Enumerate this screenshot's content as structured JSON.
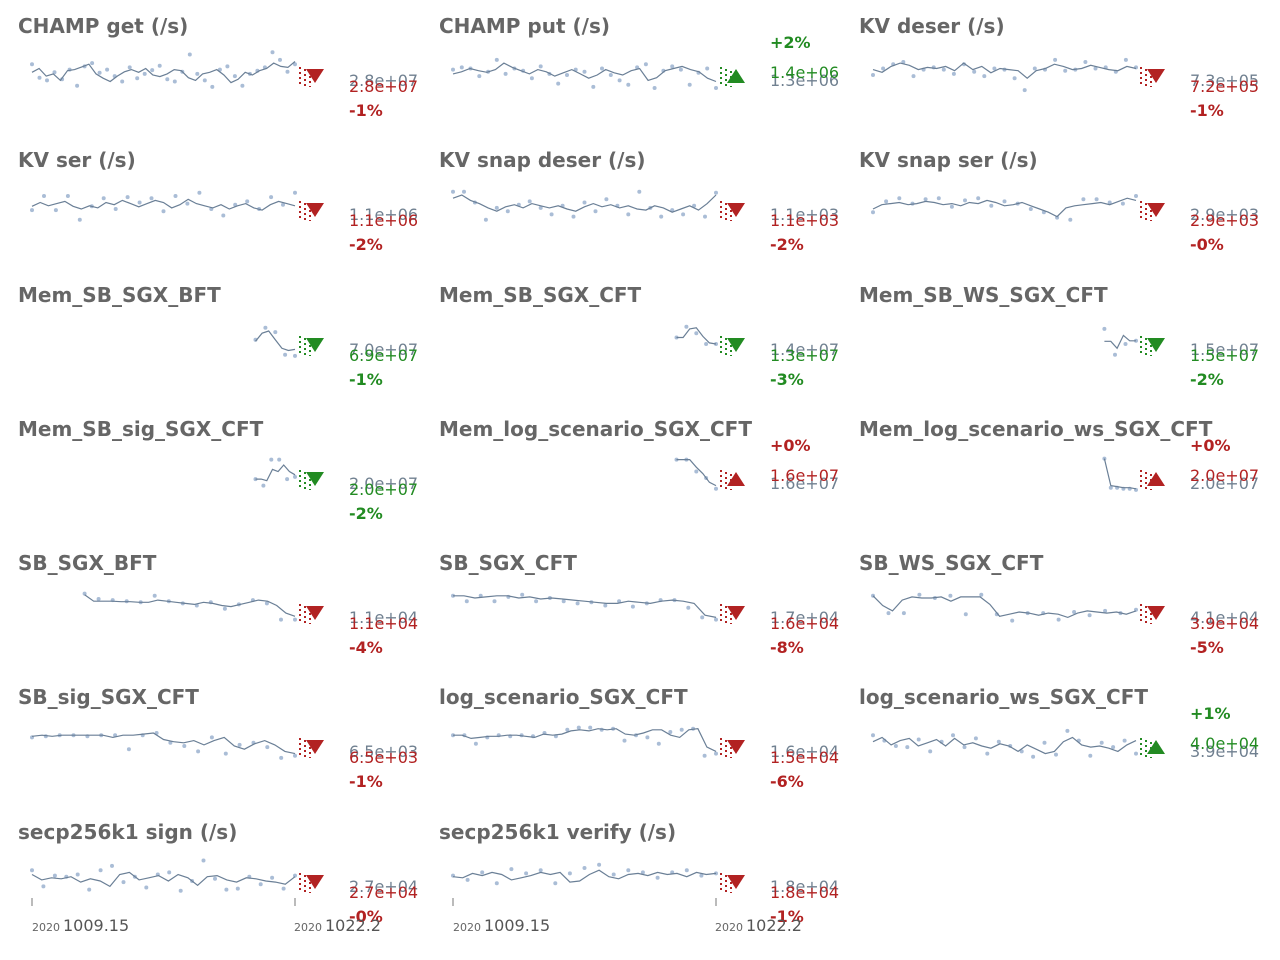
{
  "chart_data": [
    {
      "type": "line",
      "title": "CHAMP get (/s)",
      "prev": "2.8e+07",
      "last": "2.8e+07",
      "pct": "-1%",
      "dir": "down",
      "color": "#b22222",
      "prevColor": "#708090",
      "series": [
        {
          "values": [
            0.55,
            0.62,
            0.48,
            0.52,
            0.4,
            0.58,
            0.6,
            0.65,
            0.7,
            0.52,
            0.44,
            0.38,
            0.48,
            0.56,
            0.6,
            0.55,
            0.62,
            0.5,
            0.47,
            0.52,
            0.6,
            0.58,
            0.45,
            0.4,
            0.52,
            0.55,
            0.6,
            0.5,
            0.36,
            0.42,
            0.55,
            0.5,
            0.58,
            0.62,
            0.72,
            0.66,
            0.64,
            0.75
          ]
        }
      ],
      "points": [
        0.7,
        0.45,
        0.4,
        0.55,
        0.42,
        0.6,
        0.3,
        0.66,
        0.72,
        0.54,
        0.6,
        0.48,
        0.38,
        0.64,
        0.44,
        0.52,
        0.59,
        0.67,
        0.42,
        0.38,
        0.56,
        0.88,
        0.52,
        0.4,
        0.28,
        0.6,
        0.66,
        0.48,
        0.3,
        0.52,
        0.58,
        0.64,
        0.92,
        0.78,
        0.56,
        0.7
      ]
    },
    {
      "type": "line",
      "title": "CHAMP put (/s)",
      "prev": "1.3e+06",
      "last": "1.4e+06",
      "pct": "+2%",
      "dir": "up",
      "color": "#228b22",
      "prevColor": "#708090",
      "series": [
        {
          "values": [
            0.52,
            0.56,
            0.62,
            0.58,
            0.55,
            0.6,
            0.72,
            0.64,
            0.58,
            0.52,
            0.6,
            0.56,
            0.48,
            0.54,
            0.6,
            0.52,
            0.44,
            0.5,
            0.6,
            0.54,
            0.5,
            0.58,
            0.62,
            0.4,
            0.45,
            0.58,
            0.62,
            0.66,
            0.6,
            0.56,
            0.44,
            0.38
          ]
        }
      ],
      "points": [
        0.6,
        0.64,
        0.62,
        0.48,
        0.56,
        0.78,
        0.52,
        0.62,
        0.58,
        0.44,
        0.66,
        0.52,
        0.34,
        0.5,
        0.6,
        0.56,
        0.28,
        0.62,
        0.5,
        0.4,
        0.32,
        0.64,
        0.7,
        0.26,
        0.58,
        0.66,
        0.6,
        0.32,
        0.54,
        0.62,
        0.26
      ]
    },
    {
      "type": "line",
      "title": "KV deser (/s)",
      "prev": "7.3e+05",
      "last": "7.2e+05",
      "pct": "-1%",
      "dir": "down",
      "color": "#b22222",
      "prevColor": "#708090",
      "series": [
        {
          "values": [
            0.6,
            0.55,
            0.66,
            0.72,
            0.68,
            0.6,
            0.64,
            0.62,
            0.66,
            0.58,
            0.72,
            0.6,
            0.66,
            0.54,
            0.62,
            0.6,
            0.58,
            0.44,
            0.58,
            0.62,
            0.7,
            0.66,
            0.6,
            0.62,
            0.68,
            0.64,
            0.6,
            0.58,
            0.66,
            0.62
          ]
        }
      ],
      "points": [
        0.5,
        0.62,
        0.7,
        0.74,
        0.48,
        0.6,
        0.64,
        0.6,
        0.52,
        0.7,
        0.56,
        0.48,
        0.62,
        0.6,
        0.44,
        0.22,
        0.62,
        0.6,
        0.78,
        0.58,
        0.6,
        0.74,
        0.62,
        0.64,
        0.56,
        0.78,
        0.64
      ]
    },
    {
      "type": "line",
      "title": "KV ser (/s)",
      "prev": "1.1e+06",
      "last": "1.1e+06",
      "pct": "-2%",
      "dir": "down",
      "color": "#b22222",
      "prevColor": "#708090",
      "series": [
        {
          "values": [
            0.55,
            0.62,
            0.56,
            0.6,
            0.64,
            0.55,
            0.5,
            0.56,
            0.52,
            0.62,
            0.58,
            0.66,
            0.6,
            0.54,
            0.6,
            0.66,
            0.62,
            0.52,
            0.58,
            0.68,
            0.6,
            0.56,
            0.52,
            0.58,
            0.5,
            0.56,
            0.6,
            0.52,
            0.48,
            0.58,
            0.64,
            0.6,
            0.56
          ]
        }
      ],
      "points": [
        0.48,
        0.74,
        0.48,
        0.74,
        0.3,
        0.55,
        0.7,
        0.5,
        0.72,
        0.62,
        0.7,
        0.46,
        0.74,
        0.6,
        0.8,
        0.5,
        0.38,
        0.58,
        0.64,
        0.5,
        0.72,
        0.58,
        0.8
      ]
    },
    {
      "type": "line",
      "title": "KV snap deser (/s)",
      "prev": "1.1e+03",
      "last": "1.1e+03",
      "pct": "-2%",
      "dir": "down",
      "color": "#b22222",
      "prevColor": "#708090",
      "series": [
        {
          "values": [
            0.7,
            0.76,
            0.66,
            0.6,
            0.52,
            0.46,
            0.54,
            0.58,
            0.52,
            0.6,
            0.56,
            0.52,
            0.56,
            0.5,
            0.46,
            0.54,
            0.6,
            0.54,
            0.58,
            0.52,
            0.56,
            0.5,
            0.48,
            0.56,
            0.52,
            0.44,
            0.5,
            0.56,
            0.48,
            0.6,
            0.76
          ]
        }
      ],
      "points": [
        0.82,
        0.82,
        0.62,
        0.3,
        0.52,
        0.46,
        0.58,
        0.64,
        0.52,
        0.4,
        0.56,
        0.36,
        0.62,
        0.46,
        0.68,
        0.56,
        0.4,
        0.82,
        0.52,
        0.36,
        0.48,
        0.4,
        0.56,
        0.36,
        0.8
      ]
    },
    {
      "type": "line",
      "title": "KV snap ser (/s)",
      "prev": "2.9e+03",
      "last": "2.9e+03",
      "pct": "-0%",
      "dir": "down",
      "color": "#b22222",
      "prevColor": "#708090",
      "series": [
        {
          "values": [
            0.5,
            0.58,
            0.6,
            0.62,
            0.58,
            0.6,
            0.64,
            0.62,
            0.58,
            0.6,
            0.56,
            0.62,
            0.6,
            0.66,
            0.62,
            0.56,
            0.58,
            0.62,
            0.56,
            0.5,
            0.44,
            0.36,
            0.52,
            0.56,
            0.58,
            0.6,
            0.62,
            0.58,
            0.64,
            0.7,
            0.66
          ]
        }
      ],
      "points": [
        0.44,
        0.64,
        0.7,
        0.6,
        0.68,
        0.7,
        0.54,
        0.66,
        0.7,
        0.56,
        0.64,
        0.6,
        0.5,
        0.44,
        0.34,
        0.3,
        0.68,
        0.68,
        0.62,
        0.6,
        0.74
      ]
    },
    {
      "type": "line",
      "title": "Mem_SB_SGX_BFT",
      "prev": "7.0e+07",
      "last": "6.9e+07",
      "pct": "-1%",
      "dir": "down",
      "color": "#228b22",
      "prevColor": "#708090",
      "start": 0.85,
      "series": [
        {
          "values": [
            0.55,
            0.7,
            0.74,
            0.58,
            0.42,
            0.38,
            0.4
          ]
        }
      ],
      "points": [
        0.58,
        0.8,
        0.72,
        0.3,
        0.28
      ]
    },
    {
      "type": "line",
      "title": "Mem_SB_SGX_CFT",
      "prev": "1.4e+07",
      "last": "1.3e+07",
      "pct": "-3%",
      "dir": "down",
      "color": "#228b22",
      "prevColor": "#708090",
      "start": 0.85,
      "series": [
        {
          "values": [
            0.62,
            0.62,
            0.78,
            0.8,
            0.64,
            0.52,
            0.5
          ]
        }
      ],
      "points": [
        0.62,
        0.82,
        0.7,
        0.5,
        0.5
      ]
    },
    {
      "type": "line",
      "title": "Mem_SB_WS_SGX_CFT",
      "prev": "1.5e+07",
      "last": "1.5e+07",
      "pct": "-2%",
      "dir": "down",
      "color": "#228b22",
      "prevColor": "#708090",
      "start": 0.88,
      "series": [
        {
          "values": [
            0.55,
            0.55,
            0.42,
            0.66,
            0.56,
            0.56
          ]
        }
      ],
      "points": [
        0.78,
        0.3,
        0.5,
        0.56
      ]
    },
    {
      "type": "line",
      "title": "Mem_SB_sig_SGX_CFT",
      "prev": "2.0e+07",
      "last": "2.0e+07",
      "pct": "-2%",
      "dir": "down",
      "color": "#228b22",
      "prevColor": "#708090",
      "start": 0.85,
      "series": [
        {
          "values": [
            0.48,
            0.48,
            0.45,
            0.66,
            0.62,
            0.74,
            0.62,
            0.56
          ]
        }
      ],
      "points": [
        0.48,
        0.36,
        0.84,
        0.84,
        0.48,
        0.52
      ]
    },
    {
      "type": "line",
      "title": "Mem_log_scenario_SGX_CFT",
      "prev": "1.6e+07",
      "last": "1.6e+07",
      "pct": "+0%",
      "dir": "up",
      "color": "#b22222",
      "prevColor": "#708090",
      "start": 0.85,
      "series": [
        {
          "values": [
            0.84,
            0.84,
            0.84,
            0.7,
            0.58,
            0.42,
            0.36
          ]
        }
      ],
      "points": [
        0.84,
        0.84,
        0.62,
        0.5,
        0.3
      ]
    },
    {
      "type": "line",
      "title": "Mem_log_scenario_ws_SGX_CFT",
      "prev": "2.0e+07",
      "last": "2.0e+07",
      "pct": "+0%",
      "dir": "up",
      "color": "#b22222",
      "prevColor": "#708090",
      "start": 0.88,
      "series": [
        {
          "values": [
            0.86,
            0.36,
            0.34,
            0.32,
            0.32,
            0.3
          ]
        }
      ],
      "points": [
        0.86,
        0.32,
        0.32,
        0.3,
        0.3,
        0.28
      ]
    },
    {
      "type": "line",
      "title": "SB_SGX_BFT",
      "prev": "1.1e+04",
      "last": "1.1e+04",
      "pct": "-4%",
      "dir": "down",
      "color": "#b22222",
      "prevColor": "#708090",
      "start": 0.2,
      "series": [
        {
          "values": [
            0.82,
            0.7,
            0.7,
            0.7,
            0.69,
            0.69,
            0.68,
            0.68,
            0.72,
            0.7,
            0.68,
            0.66,
            0.64,
            0.68,
            0.66,
            0.62,
            0.6,
            0.64,
            0.68,
            0.72,
            0.7,
            0.62,
            0.48,
            0.42
          ]
        }
      ],
      "points": [
        0.84,
        0.74,
        0.72,
        0.7,
        0.68,
        0.8,
        0.7,
        0.66,
        0.62,
        0.68,
        0.56,
        0.64,
        0.72,
        0.66,
        0.36,
        0.36
      ]
    },
    {
      "type": "line",
      "title": "SB_SGX_CFT",
      "prev": "1.7e+04",
      "last": "1.6e+04",
      "pct": "-8%",
      "dir": "down",
      "color": "#b22222",
      "prevColor": "#708090",
      "series": [
        {
          "values": [
            0.8,
            0.8,
            0.76,
            0.78,
            0.8,
            0.8,
            0.76,
            0.78,
            0.74,
            0.76,
            0.74,
            0.72,
            0.7,
            0.68,
            0.66,
            0.66,
            0.7,
            0.68,
            0.66,
            0.7,
            0.72,
            0.7,
            0.66,
            0.44,
            0.4
          ]
        }
      ],
      "points": [
        0.8,
        0.7,
        0.8,
        0.7,
        0.78,
        0.82,
        0.7,
        0.76,
        0.7,
        0.66,
        0.68,
        0.62,
        0.7,
        0.6,
        0.66,
        0.72,
        0.72,
        0.58,
        0.4,
        0.36
      ]
    },
    {
      "type": "line",
      "title": "SB_WS_SGX_CFT",
      "prev": "4.1e+04",
      "last": "3.9e+04",
      "pct": "-5%",
      "dir": "down",
      "color": "#b22222",
      "prevColor": "#708090",
      "series": [
        {
          "values": [
            0.8,
            0.62,
            0.52,
            0.72,
            0.78,
            0.76,
            0.76,
            0.78,
            0.7,
            0.78,
            0.78,
            0.78,
            0.64,
            0.42,
            0.46,
            0.5,
            0.48,
            0.44,
            0.48,
            0.46,
            0.4,
            0.48,
            0.52,
            0.5,
            0.48,
            0.5,
            0.46,
            0.52
          ]
        }
      ],
      "points": [
        0.8,
        0.48,
        0.48,
        0.82,
        0.76,
        0.8,
        0.46,
        0.82,
        0.46,
        0.34,
        0.48,
        0.48,
        0.36,
        0.5,
        0.44,
        0.52,
        0.48,
        0.54
      ]
    },
    {
      "type": "line",
      "title": "SB_sig_SGX_CFT",
      "prev": "6.5e+03",
      "last": "6.5e+03",
      "pct": "-1%",
      "dir": "down",
      "color": "#b22222",
      "prevColor": "#708090",
      "series": [
        {
          "values": [
            0.68,
            0.7,
            0.68,
            0.7,
            0.7,
            0.7,
            0.7,
            0.7,
            0.66,
            0.7,
            0.7,
            0.72,
            0.74,
            0.62,
            0.58,
            0.56,
            0.6,
            0.52,
            0.6,
            0.66,
            0.5,
            0.44,
            0.54,
            0.6,
            0.52,
            0.4,
            0.36
          ]
        }
      ],
      "points": [
        0.66,
        0.68,
        0.7,
        0.7,
        0.68,
        0.7,
        0.7,
        0.44,
        0.7,
        0.74,
        0.56,
        0.5,
        0.4,
        0.66,
        0.36,
        0.52,
        0.56,
        0.48,
        0.28,
        0.32
      ]
    },
    {
      "type": "line",
      "title": "log_scenario_SGX_CFT",
      "prev": "1.6e+04",
      "last": "1.5e+04",
      "pct": "-6%",
      "dir": "down",
      "color": "#b22222",
      "prevColor": "#708090",
      "series": [
        {
          "values": [
            0.7,
            0.7,
            0.64,
            0.66,
            0.68,
            0.68,
            0.7,
            0.7,
            0.68,
            0.66,
            0.72,
            0.7,
            0.72,
            0.78,
            0.8,
            0.78,
            0.82,
            0.8,
            0.82,
            0.72,
            0.7,
            0.74,
            0.8,
            0.8,
            0.7,
            0.66,
            0.8,
            0.82,
            0.48,
            0.4
          ]
        }
      ],
      "points": [
        0.7,
        0.7,
        0.54,
        0.66,
        0.7,
        0.68,
        0.7,
        0.68,
        0.74,
        0.68,
        0.8,
        0.84,
        0.84,
        0.8,
        0.82,
        0.6,
        0.7,
        0.66,
        0.54,
        0.76,
        0.8,
        0.82,
        0.32,
        0.36
      ]
    },
    {
      "type": "line",
      "title": "log_scenario_ws_SGX_CFT",
      "prev": "3.9e+04",
      "last": "4.0e+04",
      "pct": "+1%",
      "dir": "up",
      "color": "#228b22",
      "prevColor": "#708090",
      "series": [
        {
          "values": [
            0.58,
            0.66,
            0.52,
            0.6,
            0.64,
            0.5,
            0.56,
            0.62,
            0.5,
            0.64,
            0.52,
            0.56,
            0.5,
            0.46,
            0.54,
            0.5,
            0.4,
            0.52,
            0.44,
            0.36,
            0.4,
            0.58,
            0.66,
            0.52,
            0.48,
            0.5,
            0.46,
            0.4,
            0.52,
            0.6
          ]
        }
      ],
      "points": [
        0.7,
        0.6,
        0.5,
        0.48,
        0.62,
        0.4,
        0.58,
        0.7,
        0.48,
        0.64,
        0.36,
        0.58,
        0.5,
        0.4,
        0.3,
        0.56,
        0.34,
        0.78,
        0.6,
        0.32,
        0.56,
        0.48,
        0.6,
        0.36
      ]
    },
    {
      "type": "line",
      "title": "secp256k1 sign (/s)",
      "prev": "2.7e+04",
      "last": "2.7e+04",
      "pct": "-0%",
      "dir": "down",
      "color": "#b22222",
      "prevColor": "#708090",
      "series": [
        {
          "values": [
            0.62,
            0.52,
            0.56,
            0.54,
            0.58,
            0.48,
            0.54,
            0.5,
            0.4,
            0.62,
            0.66,
            0.52,
            0.56,
            0.6,
            0.5,
            0.62,
            0.56,
            0.42,
            0.58,
            0.6,
            0.52,
            0.48,
            0.56,
            0.54,
            0.5,
            0.48,
            0.44,
            0.58
          ]
        }
      ],
      "points": [
        0.7,
        0.4,
        0.6,
        0.58,
        0.62,
        0.34,
        0.7,
        0.78,
        0.48,
        0.58,
        0.38,
        0.62,
        0.66,
        0.32,
        0.5,
        0.88,
        0.54,
        0.34,
        0.36,
        0.58,
        0.44,
        0.56,
        0.36,
        0.6
      ]
    },
    {
      "type": "line",
      "title": "secp256k1 verify (/s)",
      "prev": "1.8e+04",
      "last": "1.8e+04",
      "pct": "-1%",
      "dir": "down",
      "color": "#b22222",
      "prevColor": "#708090",
      "series": [
        {
          "values": [
            0.58,
            0.56,
            0.64,
            0.6,
            0.66,
            0.62,
            0.52,
            0.56,
            0.6,
            0.66,
            0.62,
            0.66,
            0.48,
            0.5,
            0.62,
            0.7,
            0.58,
            0.54,
            0.62,
            0.64,
            0.6,
            0.66,
            0.62,
            0.64,
            0.58,
            0.66,
            0.62,
            0.64
          ]
        }
      ],
      "points": [
        0.6,
        0.52,
        0.66,
        0.46,
        0.72,
        0.64,
        0.7,
        0.46,
        0.64,
        0.74,
        0.8,
        0.62,
        0.7,
        0.66,
        0.56,
        0.66,
        0.7,
        0.6,
        0.64
      ]
    }
  ],
  "x_axis": {
    "left": {
      "year": "2020",
      "label": "1009.15"
    },
    "right": {
      "year": "2020",
      "label": "1022.2"
    }
  }
}
